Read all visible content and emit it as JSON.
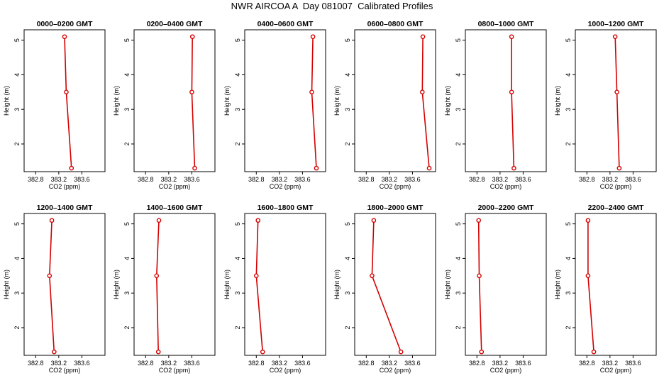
{
  "title": "NWR AIRCOA A  Day 081007  Calibrated Profiles",
  "chart_data": {
    "type": "line",
    "xlabel": "CO2 (ppm)",
    "ylabel": "Height (m)",
    "xlim": [
      382.6,
      384.0
    ],
    "ylim": [
      1.2,
      5.3
    ],
    "x_ticks": [
      "382.8",
      "383.2",
      "383.6"
    ],
    "x_tick_values": [
      382.8,
      383.2,
      383.6
    ],
    "y_ticks": [
      "2",
      "3",
      "4",
      "5"
    ],
    "y_tick_values": [
      2,
      3,
      4,
      5
    ],
    "panels": [
      {
        "title": "0000–0200 GMT",
        "points": [
          {
            "x": 383.3,
            "y": 5.1
          },
          {
            "x": 383.33,
            "y": 3.5
          },
          {
            "x": 383.42,
            "y": 1.3
          }
        ]
      },
      {
        "title": "0200–0400 GMT",
        "points": [
          {
            "x": 383.61,
            "y": 5.1
          },
          {
            "x": 383.6,
            "y": 3.5
          },
          {
            "x": 383.65,
            "y": 1.3
          }
        ]
      },
      {
        "title": "0400–0600 GMT",
        "points": [
          {
            "x": 383.78,
            "y": 5.1
          },
          {
            "x": 383.76,
            "y": 3.5
          },
          {
            "x": 383.84,
            "y": 1.3
          }
        ]
      },
      {
        "title": "0600–0800 GMT",
        "points": [
          {
            "x": 383.78,
            "y": 5.1
          },
          {
            "x": 383.77,
            "y": 3.5
          },
          {
            "x": 383.89,
            "y": 1.3
          }
        ]
      },
      {
        "title": "0800–1000 GMT",
        "points": [
          {
            "x": 383.4,
            "y": 5.1
          },
          {
            "x": 383.4,
            "y": 3.5
          },
          {
            "x": 383.44,
            "y": 1.3
          }
        ]
      },
      {
        "title": "1000–1200 GMT",
        "points": [
          {
            "x": 383.29,
            "y": 5.1
          },
          {
            "x": 383.32,
            "y": 3.5
          },
          {
            "x": 383.36,
            "y": 1.3
          }
        ]
      },
      {
        "title": "1200–1400 GMT",
        "points": [
          {
            "x": 383.08,
            "y": 5.1
          },
          {
            "x": 383.04,
            "y": 3.5
          },
          {
            "x": 383.12,
            "y": 1.3
          }
        ]
      },
      {
        "title": "1400–1600 GMT",
        "points": [
          {
            "x": 383.03,
            "y": 5.1
          },
          {
            "x": 382.99,
            "y": 3.5
          },
          {
            "x": 383.02,
            "y": 1.3
          }
        ]
      },
      {
        "title": "1600–1800 GMT",
        "points": [
          {
            "x": 382.83,
            "y": 5.1
          },
          {
            "x": 382.8,
            "y": 3.5
          },
          {
            "x": 382.91,
            "y": 1.3
          }
        ]
      },
      {
        "title": "1800–2000 GMT",
        "points": [
          {
            "x": 382.93,
            "y": 5.1
          },
          {
            "x": 382.9,
            "y": 3.5
          },
          {
            "x": 383.4,
            "y": 1.3
          }
        ]
      },
      {
        "title": "2000–2200 GMT",
        "points": [
          {
            "x": 382.83,
            "y": 5.1
          },
          {
            "x": 382.84,
            "y": 3.5
          },
          {
            "x": 382.88,
            "y": 1.3
          }
        ]
      },
      {
        "title": "2200–2400 GMT",
        "points": [
          {
            "x": 382.82,
            "y": 5.1
          },
          {
            "x": 382.82,
            "y": 3.5
          },
          {
            "x": 382.92,
            "y": 1.3
          }
        ]
      }
    ]
  }
}
